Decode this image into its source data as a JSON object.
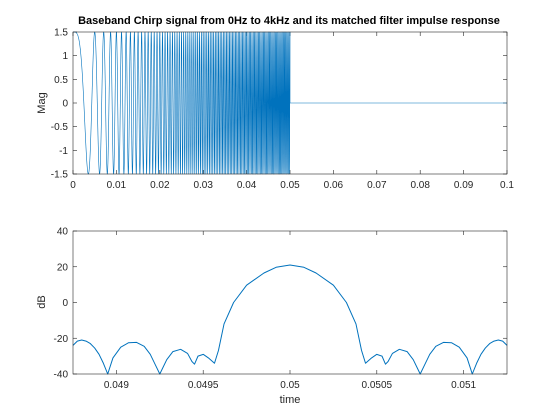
{
  "figure": {
    "background": "#ffffff",
    "line_color": "#0072bd",
    "axes_color": "#262626"
  },
  "chart_data": [
    {
      "type": "line",
      "title": "Baseband Chirp signal from 0Hz to 4kHz and its matched filter impulse response",
      "xlabel": "",
      "ylabel": "Mag",
      "xlim": [
        0,
        0.1
      ],
      "ylim": [
        -1.5,
        1.5
      ],
      "xticks": [
        "0",
        "0.01",
        "0.02",
        "0.03",
        "0.04",
        "0.05",
        "0.06",
        "0.07",
        "0.08",
        "0.09",
        "0.1"
      ],
      "yticks": [
        "-1.5",
        "-1",
        "-0.5",
        "0",
        "0.5",
        "1",
        "1.5"
      ],
      "grid": false,
      "series": [
        {
          "signal": "linear chirp",
          "amplitude": 1.5,
          "f_start_hz": 0,
          "f_end_hz": 4000,
          "t_start": 0,
          "t_end": 0.05,
          "value_after_end": 0,
          "x_end": 0.1
        }
      ]
    },
    {
      "type": "line",
      "title": "",
      "xlabel": "time",
      "ylabel": "dB",
      "xlim": [
        0.04875,
        0.05125
      ],
      "ylim": [
        -40,
        40
      ],
      "xticks": [
        "0.049",
        "0.0495",
        "0.05",
        "0.0505",
        "0.051"
      ],
      "yticks": [
        "-40",
        "-20",
        "0",
        "20",
        "40"
      ],
      "grid": false,
      "series": [
        {
          "points": [
            [
              0.04875,
              -24
            ],
            [
              0.048775,
              -21.6
            ],
            [
              0.0488,
              -21
            ],
            [
              0.048825,
              -21.6
            ],
            [
              0.04885,
              -23
            ],
            [
              0.048875,
              -25.5
            ],
            [
              0.0489,
              -29
            ],
            [
              0.048925,
              -34
            ],
            [
              0.04895,
              -40
            ],
            [
              0.04898,
              -31
            ],
            [
              0.049025,
              -25
            ],
            [
              0.04907,
              -22.5
            ],
            [
              0.049115,
              -22.3
            ],
            [
              0.04916,
              -24.5
            ],
            [
              0.049195,
              -29
            ],
            [
              0.049225,
              -35
            ],
            [
              0.04925,
              -40
            ],
            [
              0.04929,
              -32
            ],
            [
              0.049325,
              -27.5
            ],
            [
              0.04937,
              -26.2
            ],
            [
              0.04941,
              -28.5
            ],
            [
              0.049435,
              -33
            ],
            [
              0.04945,
              -34.5
            ],
            [
              0.04947,
              -30
            ],
            [
              0.0495,
              -29
            ],
            [
              0.04953,
              -31
            ],
            [
              0.049565,
              -34
            ],
            [
              0.049588,
              -26.8
            ],
            [
              0.04962,
              -12
            ],
            [
              0.049675,
              0
            ],
            [
              0.04975,
              9.7
            ],
            [
              0.04985,
              16.5
            ],
            [
              0.04992,
              19.7
            ],
            [
              0.05,
              21
            ],
            [
              0.05008,
              19.7
            ],
            [
              0.05015,
              16.5
            ],
            [
              0.05025,
              9.7
            ],
            [
              0.050325,
              0
            ],
            [
              0.05038,
              -12
            ],
            [
              0.050412,
              -26.8
            ],
            [
              0.050435,
              -34
            ],
            [
              0.05047,
              -31
            ],
            [
              0.0505,
              -29
            ],
            [
              0.05053,
              -30
            ],
            [
              0.05055,
              -34.5
            ],
            [
              0.050565,
              -33
            ],
            [
              0.05059,
              -28.5
            ],
            [
              0.05063,
              -26.2
            ],
            [
              0.050675,
              -27.5
            ],
            [
              0.05071,
              -32
            ],
            [
              0.05075,
              -40
            ],
            [
              0.050775,
              -35
            ],
            [
              0.050805,
              -29
            ],
            [
              0.05084,
              -24.5
            ],
            [
              0.050885,
              -22.3
            ],
            [
              0.05093,
              -22.5
            ],
            [
              0.050975,
              -25
            ],
            [
              0.05102,
              -31
            ],
            [
              0.05105,
              -40
            ],
            [
              0.051075,
              -34
            ],
            [
              0.0511,
              -29
            ],
            [
              0.051125,
              -25.5
            ],
            [
              0.05115,
              -23
            ],
            [
              0.051175,
              -21.6
            ],
            [
              0.0512,
              -21
            ],
            [
              0.051225,
              -21.6
            ],
            [
              0.05125,
              -24
            ]
          ]
        }
      ]
    }
  ]
}
